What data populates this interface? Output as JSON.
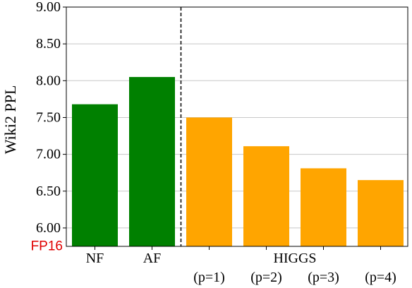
{
  "chart_data": {
    "type": "bar",
    "ylabel": "Wiki2 PPL",
    "ylim": [
      5.75,
      9.0
    ],
    "yticks": [
      "6.00",
      "6.50",
      "7.00",
      "7.50",
      "8.00",
      "8.50",
      "9.00"
    ],
    "grid": "horizontal",
    "baseline_label": "FP16",
    "baseline_label_color": "#e00000",
    "bars": [
      {
        "label": "NF",
        "value": 7.68,
        "color": "#008000"
      },
      {
        "label": "AF",
        "value": 8.05,
        "color": "#008000"
      },
      {
        "label": "(p=1)",
        "value": 7.5,
        "color": "#ffa500"
      },
      {
        "label": "(p=2)",
        "value": 7.11,
        "color": "#ffa500"
      },
      {
        "label": "(p=3)",
        "value": 6.81,
        "color": "#ffa500"
      },
      {
        "label": "(p=4)",
        "value": 6.65,
        "color": "#ffa500"
      }
    ],
    "group_label": "HIGGS",
    "separator_style": "dashed"
  }
}
